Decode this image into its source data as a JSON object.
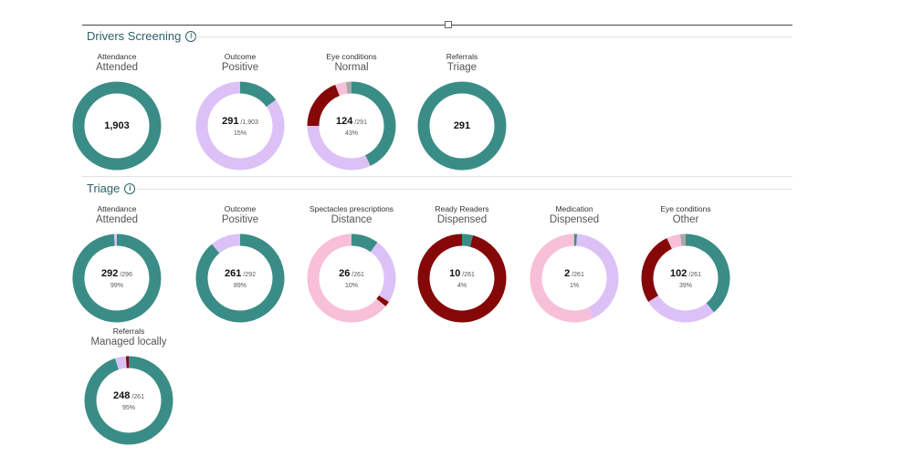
{
  "colors": {
    "teal": "#3a8d86",
    "lavender": "#dcc1f7",
    "darkred": "#860707",
    "pink": "#f8bfd8",
    "gray": "#a8a8a8"
  },
  "chart_data": [
    {
      "type": "pie",
      "title": "Drivers Screening",
      "charts": [
        {
          "id": "ds-attendance",
          "metric": "Attendance",
          "value_label": "Attended",
          "count": "1,903",
          "total": "",
          "percent": "",
          "start_angle": 0,
          "segments": [
            {
              "color": "teal",
              "value": 100
            }
          ]
        },
        {
          "id": "ds-outcome",
          "metric": "Outcome",
          "value_label": "Positive",
          "count": "291",
          "total": "/1,903",
          "percent": "15%",
          "start_angle": 0,
          "segments": [
            {
              "color": "teal",
              "value": 15
            },
            {
              "color": "lavender",
              "value": 85
            }
          ]
        },
        {
          "id": "ds-eye",
          "metric": "Eye conditions",
          "value_label": "Normal",
          "count": "124",
          "total": "/291",
          "percent": "43%",
          "start_angle": 0,
          "segments": [
            {
              "color": "teal",
              "value": 43
            },
            {
              "color": "lavender",
              "value": 32
            },
            {
              "color": "darkred",
              "value": 19
            },
            {
              "color": "pink",
              "value": 4
            },
            {
              "color": "gray",
              "value": 2
            }
          ]
        },
        {
          "id": "ds-referrals",
          "metric": "Referrals",
          "value_label": "Triage",
          "count": "291",
          "total": "",
          "percent": "",
          "start_angle": 0,
          "segments": [
            {
              "color": "teal",
              "value": 100
            }
          ]
        }
      ]
    },
    {
      "type": "pie",
      "title": "Triage",
      "charts": [
        {
          "id": "tr-attendance",
          "metric": "Attendance",
          "value_label": "Attended",
          "count": "292",
          "total": "/296",
          "percent": "99%",
          "start_angle": 0,
          "segments": [
            {
              "color": "teal",
              "value": 99
            },
            {
              "color": "lavender",
              "value": 1
            }
          ]
        },
        {
          "id": "tr-outcome",
          "metric": "Outcome",
          "value_label": "Positive",
          "count": "261",
          "total": "/292",
          "percent": "89%",
          "start_angle": 0,
          "segments": [
            {
              "color": "teal",
              "value": 89
            },
            {
              "color": "lavender",
              "value": 11
            }
          ]
        },
        {
          "id": "tr-spectacles",
          "metric": "Spectacles prescriptions",
          "value_label": "Distance",
          "count": "26",
          "total": "/261",
          "percent": "10%",
          "start_angle": 0,
          "segments": [
            {
              "color": "teal",
              "value": 10
            },
            {
              "color": "lavender",
              "value": 24
            },
            {
              "color": "darkred",
              "value": 2
            },
            {
              "color": "pink",
              "value": 64
            }
          ]
        },
        {
          "id": "tr-ready-readers",
          "metric": "Ready Readers",
          "value_label": "Dispensed",
          "count": "10",
          "total": "/261",
          "percent": "4%",
          "start_angle": 0,
          "segments": [
            {
              "color": "teal",
              "value": 4
            },
            {
              "color": "darkred",
              "value": 96
            }
          ]
        },
        {
          "id": "tr-medication",
          "metric": "Medication",
          "value_label": "Dispensed",
          "count": "2",
          "total": "/261",
          "percent": "1%",
          "start_angle": 0,
          "segments": [
            {
              "color": "teal",
              "value": 1
            },
            {
              "color": "lavender",
              "value": 42
            },
            {
              "color": "pink",
              "value": 57
            }
          ]
        },
        {
          "id": "tr-eye",
          "metric": "Eye conditions",
          "value_label": "Other",
          "count": "102",
          "total": "/261",
          "percent": "39%",
          "start_angle": 0,
          "segments": [
            {
              "color": "teal",
              "value": 39
            },
            {
              "color": "lavender",
              "value": 27
            },
            {
              "color": "darkred",
              "value": 27
            },
            {
              "color": "pink",
              "value": 5
            },
            {
              "color": "gray",
              "value": 2
            }
          ]
        },
        {
          "id": "tr-referrals",
          "metric": "Referrals",
          "value_label": "Managed locally",
          "count": "248",
          "total": "/261",
          "percent": "95%",
          "start_angle": 0,
          "segments": [
            {
              "color": "teal",
              "value": 95
            },
            {
              "color": "lavender",
              "value": 4
            },
            {
              "color": "darkred",
              "value": 1
            }
          ]
        }
      ]
    }
  ]
}
